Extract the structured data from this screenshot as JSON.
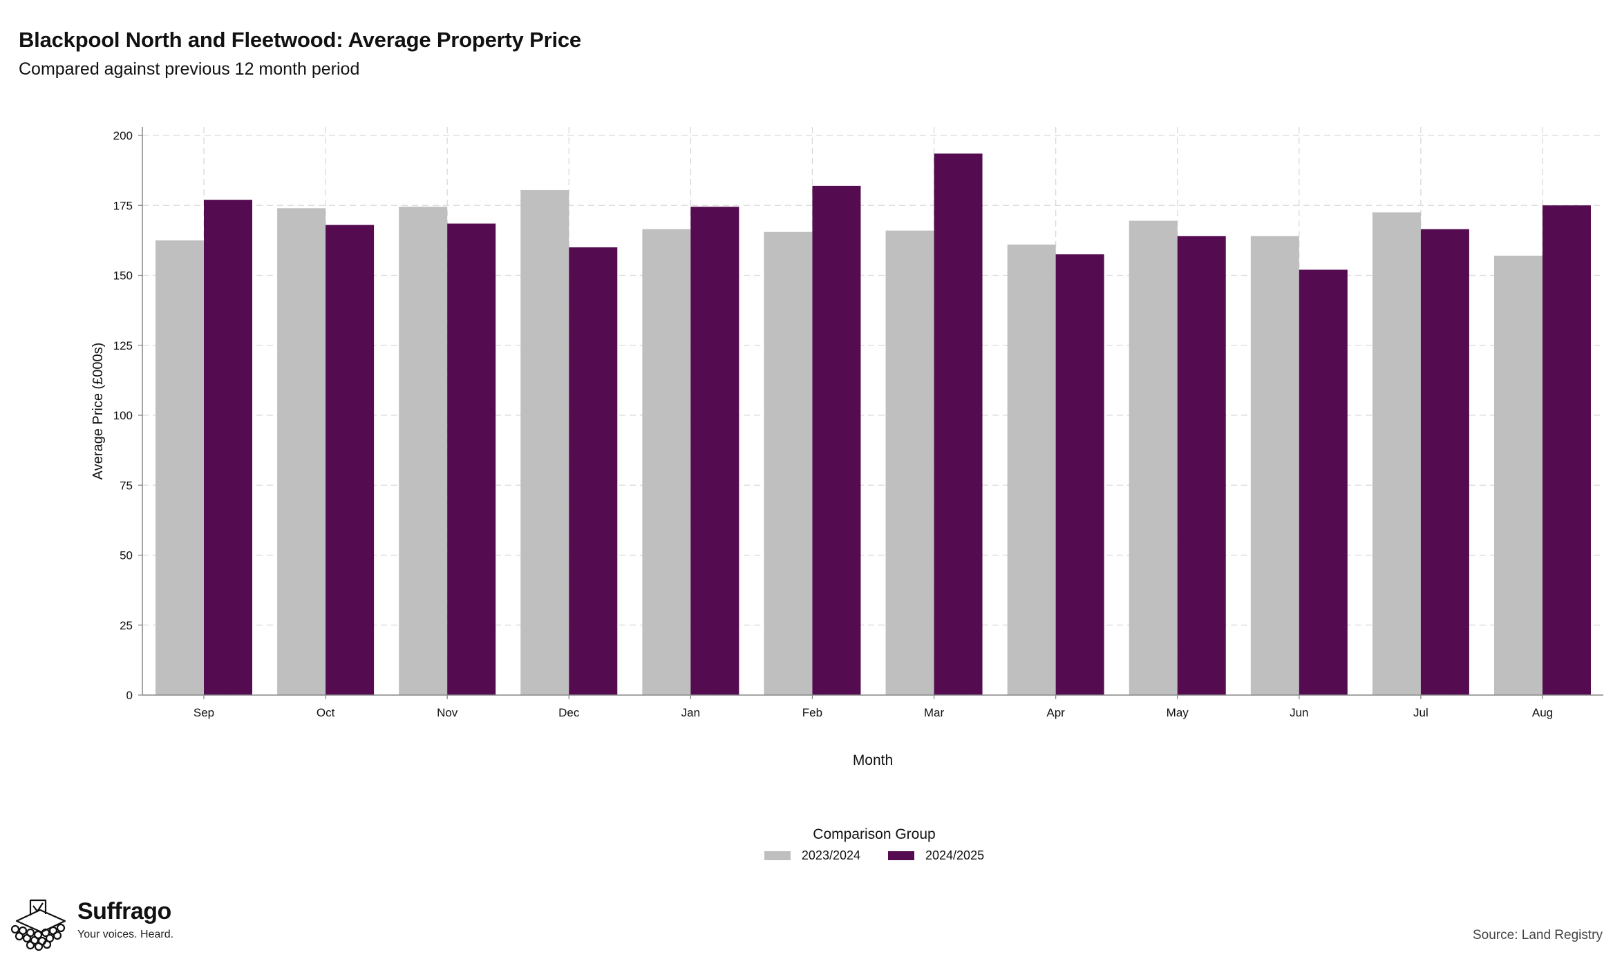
{
  "header": {
    "title": "Blackpool North and Fleetwood: Average Property Price",
    "subtitle": "Compared against previous 12 month period"
  },
  "chart_data": {
    "type": "bar",
    "xlabel": "Month",
    "ylabel": "Average Price (£000s)",
    "ylim": [
      0,
      200
    ],
    "yticks": [
      0,
      25,
      50,
      75,
      100,
      125,
      150,
      175,
      200
    ],
    "grid": true,
    "legend_placement": "bottom",
    "categories": [
      "Sep",
      "Oct",
      "Nov",
      "Dec",
      "Jan",
      "Feb",
      "Mar",
      "Apr",
      "May",
      "Jun",
      "Jul",
      "Aug"
    ],
    "series": [
      {
        "name": "2023/2024",
        "color": "#bfbfbf",
        "values": [
          162.5,
          174,
          174.5,
          180.5,
          166.5,
          165.5,
          166,
          161,
          169.5,
          164,
          172.5,
          157
        ]
      },
      {
        "name": "2024/2025",
        "color": "#540b4f",
        "values": [
          177,
          168,
          168.5,
          160,
          174.5,
          182,
          193.5,
          157.5,
          164,
          152,
          166.5,
          175
        ]
      }
    ]
  },
  "legend": {
    "title": "Comparison Group"
  },
  "footer": {
    "logo_name": "Suffrago",
    "logo_tagline": "Your voices. Heard.",
    "source": "Source: Land Registry"
  }
}
